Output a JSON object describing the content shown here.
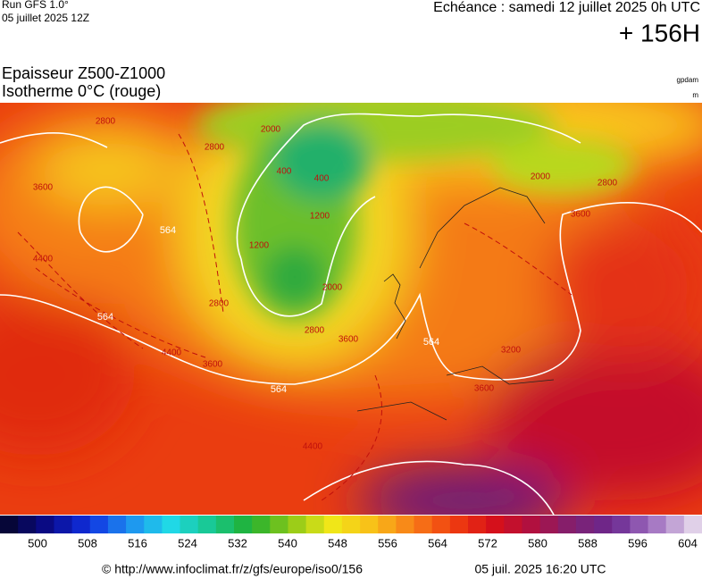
{
  "header": {
    "run": "Run GFS 1.0°",
    "run_date": "05 juillet 2025 12Z",
    "forecast": "Echéance : samedi 12 juillet 2025 0h UTC",
    "lead": "+ 156H"
  },
  "title": {
    "line1": "Epaisseur Z500-Z1000",
    "line2": "Isotherme 0°C (rouge)",
    "unit1": "gpdam",
    "unit2": "m"
  },
  "map": {
    "contour_labels": [
      "564",
      "564",
      "564",
      "564",
      "2800",
      "2800",
      "2800",
      "2800",
      "2800",
      "3600",
      "3600",
      "3600",
      "3600",
      "3600",
      "4400",
      "4400",
      "4400",
      "2000",
      "2000",
      "2000",
      "1200",
      "1200",
      "400",
      "400",
      "3200"
    ]
  },
  "colorbar": {
    "ticks": [
      500,
      508,
      516,
      524,
      532,
      540,
      548,
      556,
      564,
      572,
      580,
      588,
      596,
      604
    ]
  },
  "footer": {
    "url": "© http://www.infoclimat.fr/z/gfs/europe/iso0/156",
    "timestamp": "05 juil. 2025 16:20 UTC"
  }
}
